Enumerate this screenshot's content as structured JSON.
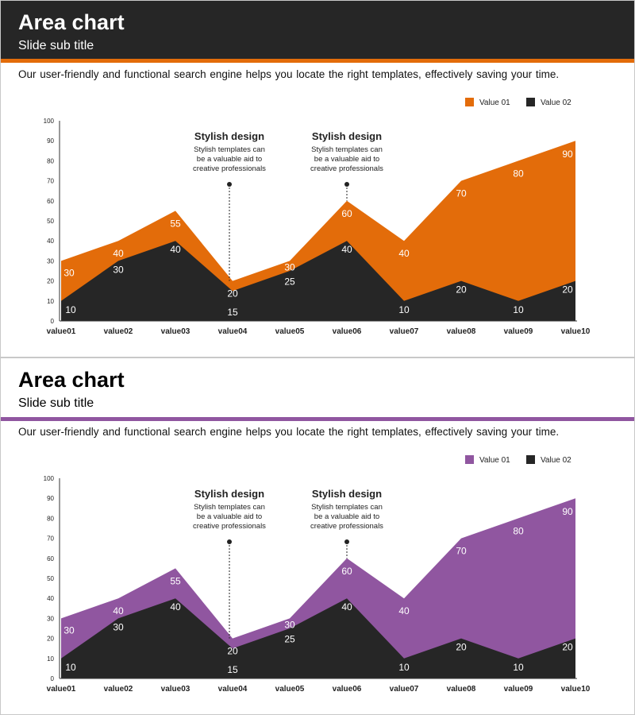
{
  "slides": [
    {
      "title": "Area chart",
      "subtitle": "Slide sub title",
      "description": "Our user-friendly and functional search engine helps you locate the right templates, effectively saving your time.",
      "accent": "#e36c0a"
    },
    {
      "title": "Area chart",
      "subtitle": "Slide sub title",
      "description": "Our user-friendly and functional search engine helps you locate the right templates, effectively saving your time.",
      "accent": "#9056a0"
    }
  ],
  "chart_data": [
    {
      "type": "area",
      "categories": [
        "value01",
        "value02",
        "value03",
        "value04",
        "value05",
        "value06",
        "value07",
        "value08",
        "value09",
        "value10"
      ],
      "series": [
        {
          "name": "Value 01",
          "color": "#e36c0a",
          "values": [
            30,
            40,
            55,
            20,
            30,
            60,
            40,
            70,
            80,
            90
          ]
        },
        {
          "name": "Value 02",
          "color": "#262626",
          "values": [
            10,
            30,
            40,
            15,
            25,
            40,
            10,
            20,
            10,
            20
          ]
        }
      ],
      "ylim": [
        0,
        100
      ],
      "yticks": [
        0,
        10,
        20,
        30,
        40,
        50,
        60,
        70,
        80,
        90,
        100
      ],
      "grid": false,
      "legend": "top-right",
      "annotations": [
        {
          "category": "value04",
          "title": "Stylish design",
          "lines": [
            "Stylish templates can",
            "be a valuable aid to",
            "creative professionals"
          ]
        },
        {
          "category": "value06",
          "title": "Stylish design",
          "lines": [
            "Stylish templates can",
            "be a valuable aid to",
            "creative professionals"
          ]
        }
      ]
    },
    {
      "type": "area",
      "categories": [
        "value01",
        "value02",
        "value03",
        "value04",
        "value05",
        "value06",
        "value07",
        "value08",
        "value09",
        "value10"
      ],
      "series": [
        {
          "name": "Value 01",
          "color": "#9056a0",
          "values": [
            30,
            40,
            55,
            20,
            30,
            60,
            40,
            70,
            80,
            90
          ]
        },
        {
          "name": "Value 02",
          "color": "#262626",
          "values": [
            10,
            30,
            40,
            15,
            25,
            40,
            10,
            20,
            10,
            20
          ]
        }
      ],
      "ylim": [
        0,
        100
      ],
      "yticks": [
        0,
        10,
        20,
        30,
        40,
        50,
        60,
        70,
        80,
        90,
        100
      ],
      "grid": false,
      "legend": "top-right",
      "annotations": [
        {
          "category": "value04",
          "title": "Stylish design",
          "lines": [
            "Stylish templates can",
            "be a valuable aid to",
            "creative professionals"
          ]
        },
        {
          "category": "value06",
          "title": "Stylish design",
          "lines": [
            "Stylish templates can",
            "be a valuable aid to",
            "creative professionals"
          ]
        }
      ]
    }
  ]
}
